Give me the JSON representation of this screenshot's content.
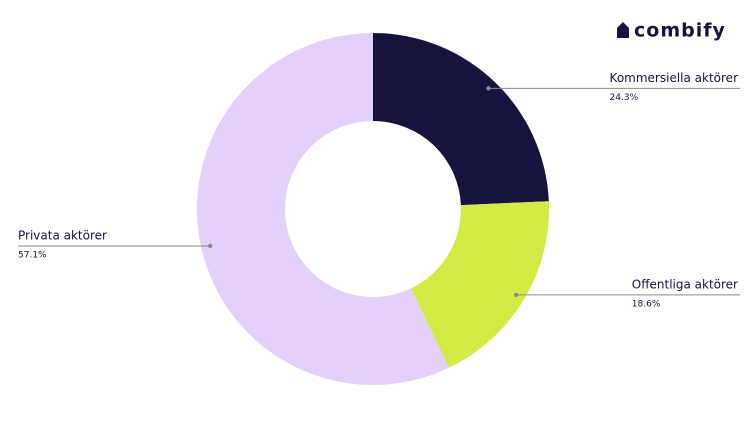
{
  "logo": "combify",
  "chart_data": {
    "type": "donut",
    "categories": [
      "Kommersiella aktörer",
      "Offentliga aktörer",
      "Privata aktörer"
    ],
    "values": [
      24.3,
      18.6,
      57.1
    ],
    "value_labels": [
      "24.3%",
      "18.6%",
      "57.1%"
    ],
    "colors": [
      "#16133f",
      "#d4ea45",
      "#e3d0fb"
    ]
  }
}
